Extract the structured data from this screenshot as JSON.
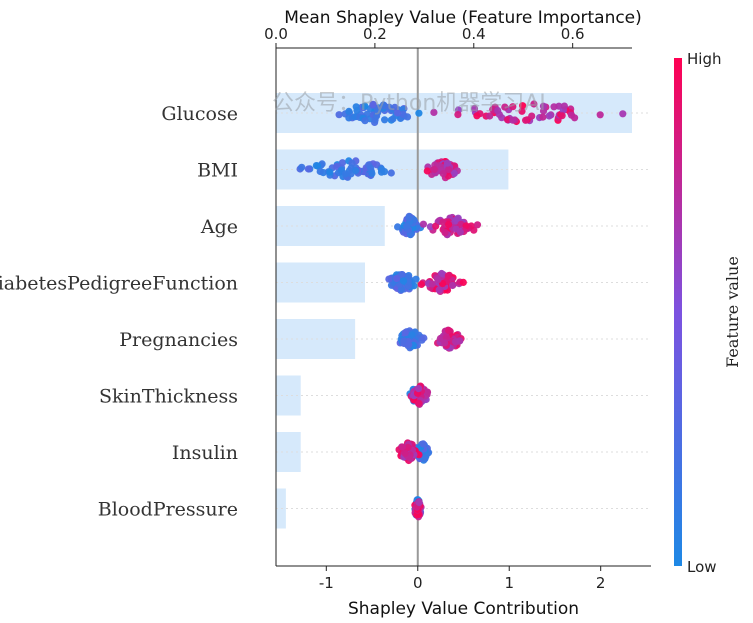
{
  "chart_data": {
    "type": "scatter",
    "title": "",
    "top_axis": {
      "label": "Mean Shapley Value (Feature Importance)",
      "ticks": [
        0.0,
        0.2,
        0.4,
        0.6
      ],
      "tick_labels": [
        "0.0",
        "0.2",
        "0.4",
        "0.6"
      ],
      "range": [
        0,
        0.72
      ]
    },
    "bottom_axis": {
      "label": "Shapley Value Contribution",
      "ticks": [
        -1,
        0,
        1,
        2
      ],
      "tick_labels": [
        "-1",
        "0",
        "1",
        "2"
      ],
      "range": [
        -1.55,
        2.55
      ]
    },
    "features": [
      "Glucose",
      "BMI",
      "Age",
      "DiabetesPedigreeFunction",
      "Pregnancies",
      "SkinThickness",
      "Insulin",
      "BloodPressure"
    ],
    "mean_importance": [
      0.72,
      0.47,
      0.22,
      0.18,
      0.16,
      0.05,
      0.05,
      0.02
    ],
    "shap_distributions": [
      {
        "feature": "Glucose",
        "low_range": [
          -1.0,
          0.1
        ],
        "high_range": [
          0.1,
          2.35
        ]
      },
      {
        "feature": "BMI",
        "low_range": [
          -1.4,
          -0.05
        ],
        "high_range": [
          0.05,
          0.5
        ]
      },
      {
        "feature": "Age",
        "low_range": [
          -0.25,
          0.05
        ],
        "high_range": [
          0.0,
          0.75
        ]
      },
      {
        "feature": "DiabetesPedigreeFunction",
        "low_range": [
          -0.4,
          0.05
        ],
        "high_range": [
          0.0,
          0.55
        ]
      },
      {
        "feature": "Pregnancies",
        "low_range": [
          -0.25,
          0.1
        ],
        "high_range": [
          0.15,
          0.55
        ]
      },
      {
        "feature": "SkinThickness",
        "low_range": [
          -0.12,
          0.12
        ],
        "high_range": [
          -0.1,
          0.15
        ]
      },
      {
        "feature": "Insulin",
        "low_range": [
          -0.05,
          0.15
        ],
        "high_range": [
          -0.25,
          0.05
        ]
      },
      {
        "feature": "BloodPressure",
        "low_range": [
          -0.05,
          0.05
        ],
        "high_range": [
          -0.05,
          0.05
        ]
      }
    ],
    "colorbar": {
      "title": "Feature value",
      "high_label": "High",
      "low_label": "Low",
      "high_color": "#ff0052",
      "low_color": "#1e88e5"
    },
    "bar_color": "#d6e9fb",
    "zero_line_color": "#999999",
    "grid": false
  },
  "watermark": "公众号：Python机器学习AI"
}
